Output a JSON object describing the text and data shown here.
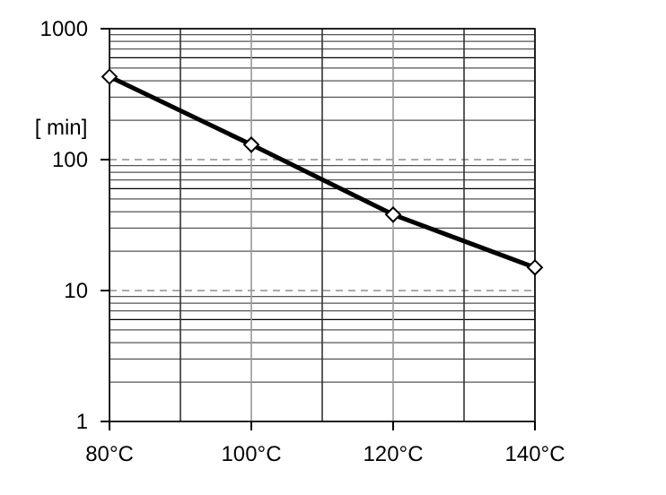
{
  "chart_data": {
    "type": "line",
    "ylabel": "[ min]",
    "x": [
      80,
      100,
      120,
      140
    ],
    "series": [
      {
        "color": "#000000",
        "values": [
          430,
          130,
          38,
          15
        ]
      }
    ],
    "xlim": [
      80,
      140
    ],
    "xticks": [
      {
        "value": 80,
        "label": "80°C"
      },
      {
        "value": 90,
        "label": null
      },
      {
        "value": 100,
        "label": "100°C"
      },
      {
        "value": 110,
        "label": null
      },
      {
        "value": 120,
        "label": "120°C"
      },
      {
        "value": 130,
        "label": null
      },
      {
        "value": 140,
        "label": "140°C"
      }
    ],
    "ylim": [
      1,
      1000
    ],
    "yticks": [
      1,
      {
        "value": 2,
        "label": null
      },
      {
        "value": 3,
        "label": null
      },
      {
        "value": 4,
        "label": null
      },
      {
        "value": 5,
        "label": null
      },
      {
        "value": 6,
        "label": null
      },
      {
        "value": 7,
        "label": null
      },
      {
        "value": 8,
        "label": null
      },
      {
        "value": 9,
        "label": null
      },
      10,
      {
        "value": 20,
        "label": null
      },
      {
        "value": 30,
        "label": null
      },
      {
        "value": 40,
        "label": null
      },
      {
        "value": 50,
        "label": null
      },
      {
        "value": 60,
        "label": null
      },
      {
        "value": 70,
        "label": null
      },
      {
        "value": 80,
        "label": null
      },
      {
        "value": 90,
        "label": null
      },
      100,
      {
        "value": 200,
        "label": null
      },
      {
        "value": 300,
        "label": null
      },
      {
        "value": 400,
        "label": null
      },
      {
        "value": 500,
        "label": null
      },
      {
        "value": 600,
        "label": null
      },
      {
        "value": 700,
        "label": null
      },
      {
        "value": 800,
        "label": null
      },
      {
        "value": 900,
        "label": null
      },
      1000
    ],
    "log": true,
    "grid": true,
    "marker": "diamond",
    "line_style": "solid"
  }
}
